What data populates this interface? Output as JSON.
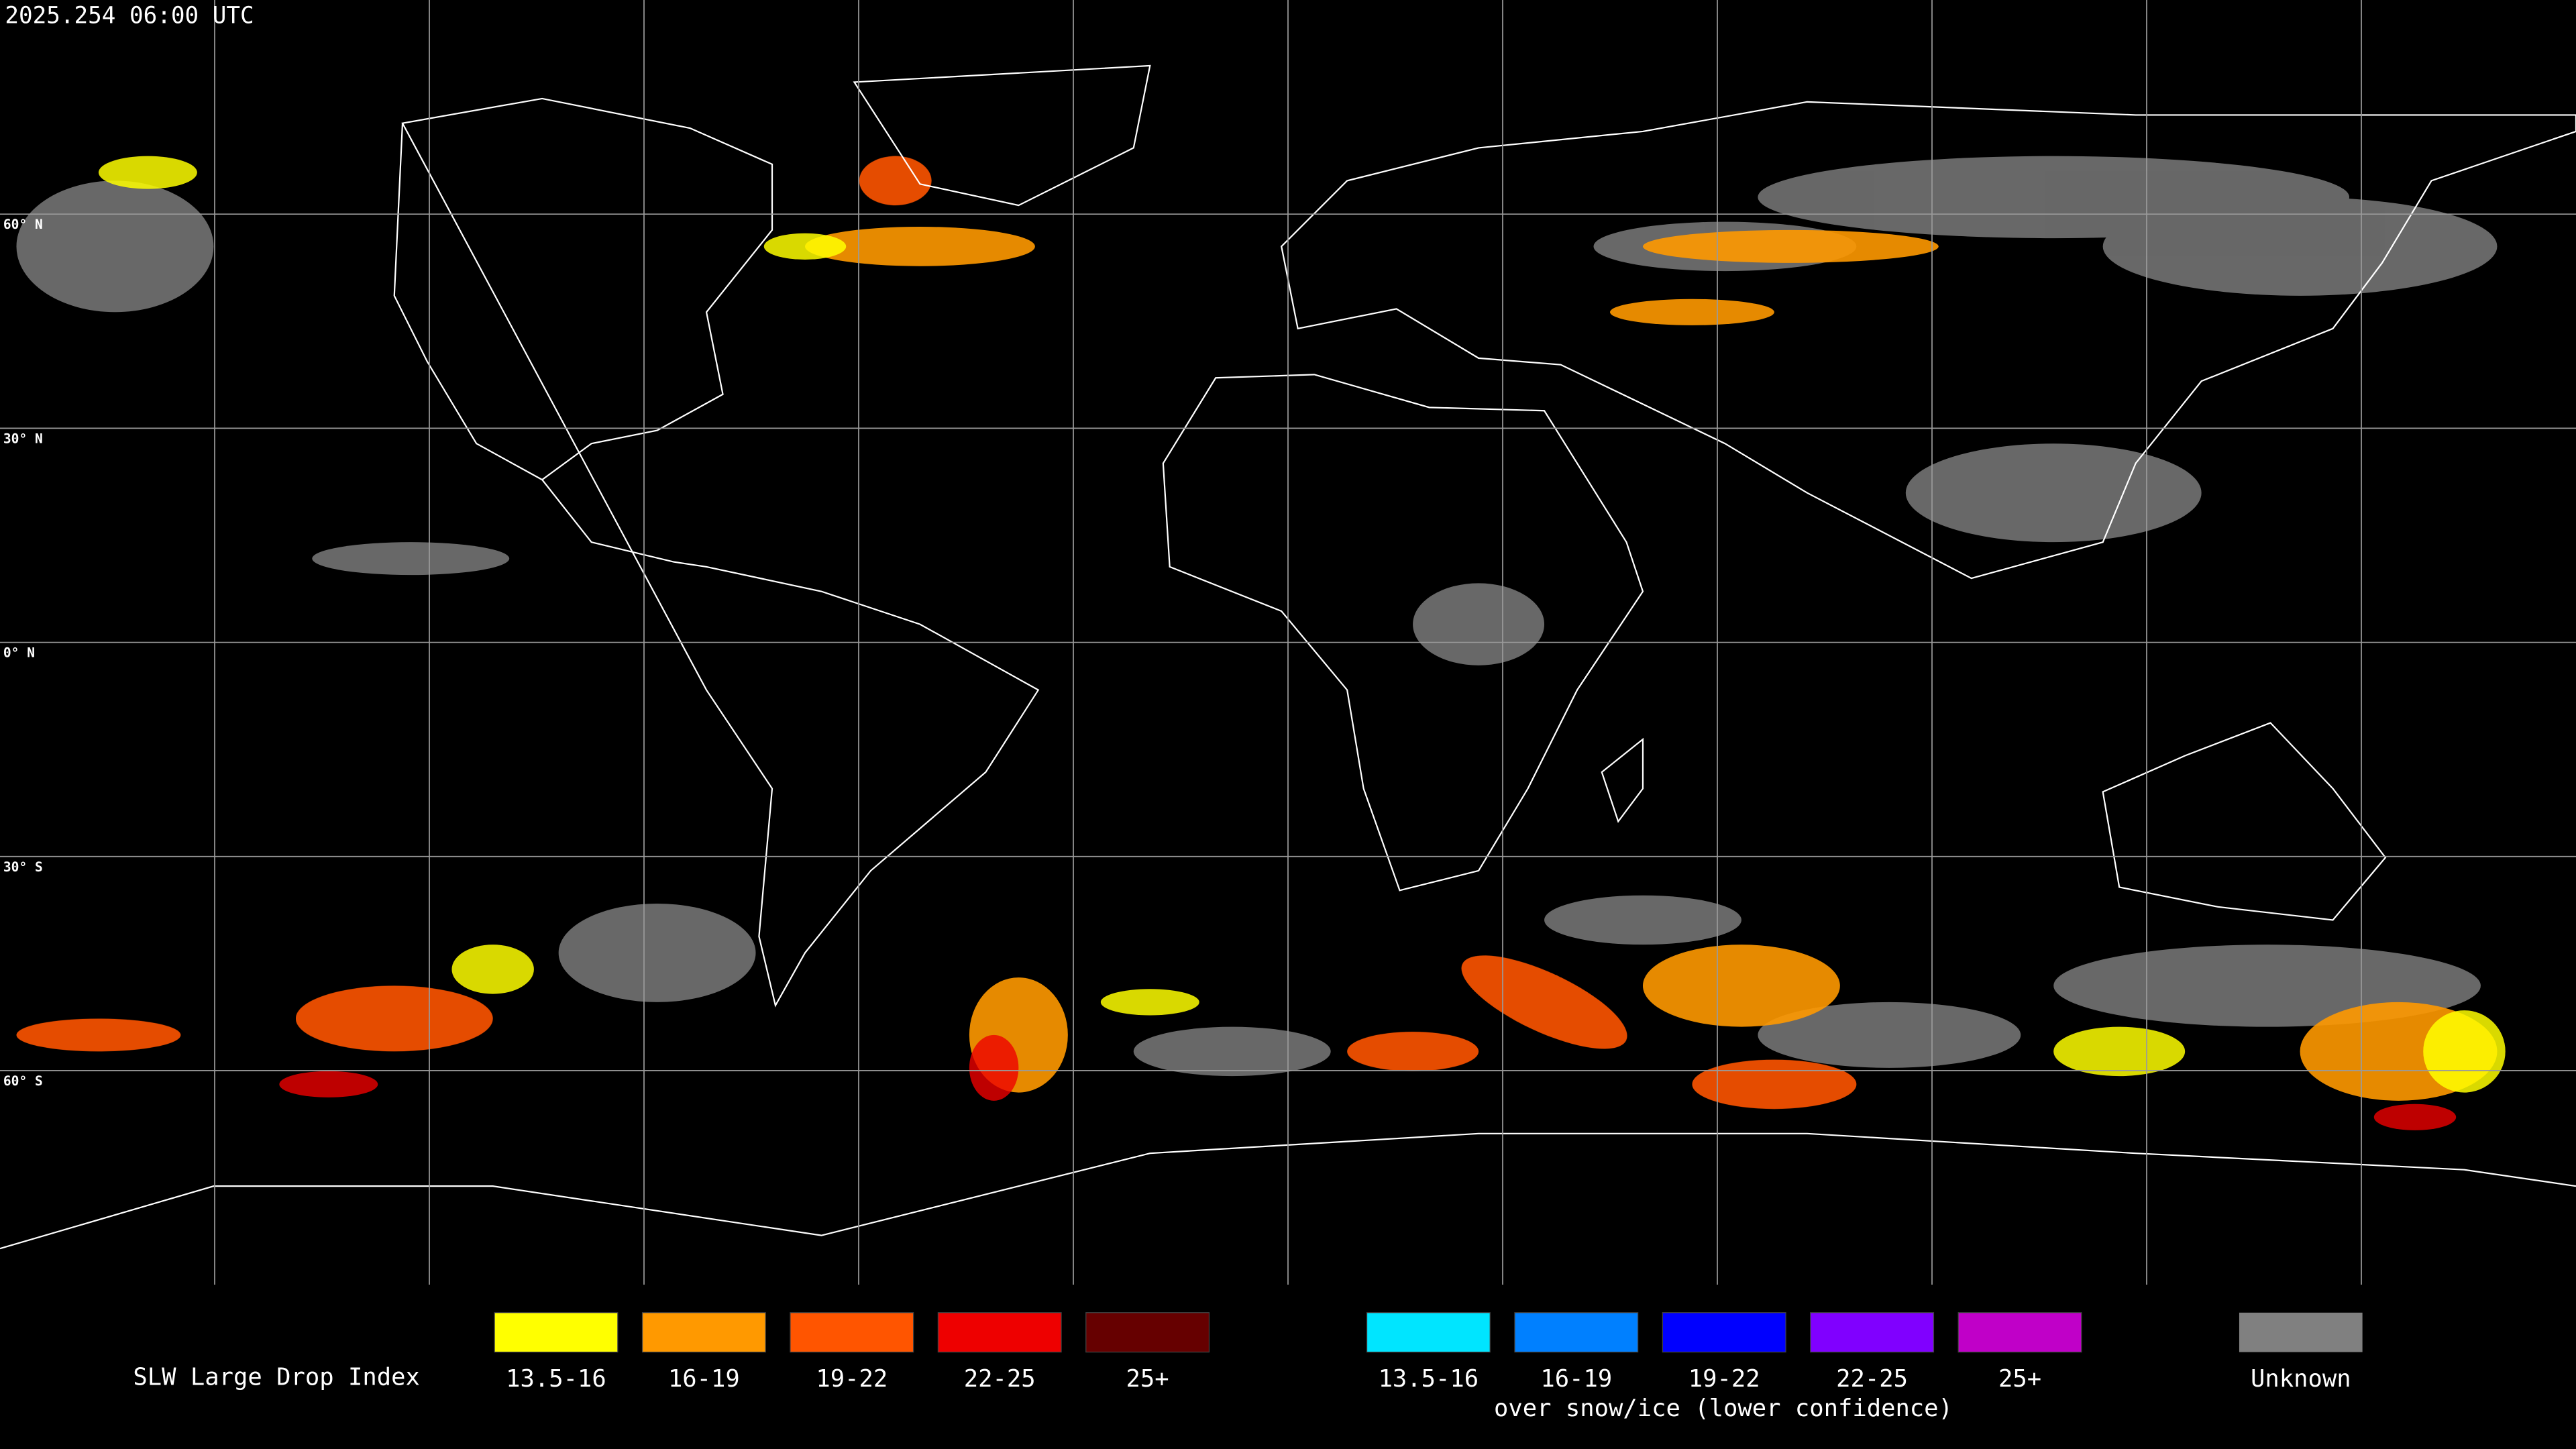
{
  "timestamp": "2025.254 06:00 UTC",
  "latitude_labels": [
    "60° N",
    "30° N",
    "0° N",
    "30° S",
    "60° S"
  ],
  "legend": {
    "title": "SLW Large Drop Index",
    "groups": [
      {
        "items": [
          {
            "label": "13.5-16",
            "color": "#ffff00"
          },
          {
            "label": "16-19",
            "color": "#ff9900"
          },
          {
            "label": "19-22",
            "color": "#ff5500"
          },
          {
            "label": "22-25",
            "color": "#ee0000"
          },
          {
            "label": "25+",
            "color": "#660000"
          }
        ]
      },
      {
        "items": [
          {
            "label": "13.5-16",
            "color": "#00e5ff"
          },
          {
            "label": "16-19",
            "color": "#0080ff"
          },
          {
            "label": "19-22",
            "color": "#0000ff"
          },
          {
            "label": "22-25",
            "color": "#8000ff"
          },
          {
            "label": "25+",
            "color": "#c000c8"
          }
        ],
        "note": "over snow/ice (lower confidence)"
      }
    ],
    "unknown": {
      "label": "Unknown",
      "color": "#808080"
    }
  }
}
